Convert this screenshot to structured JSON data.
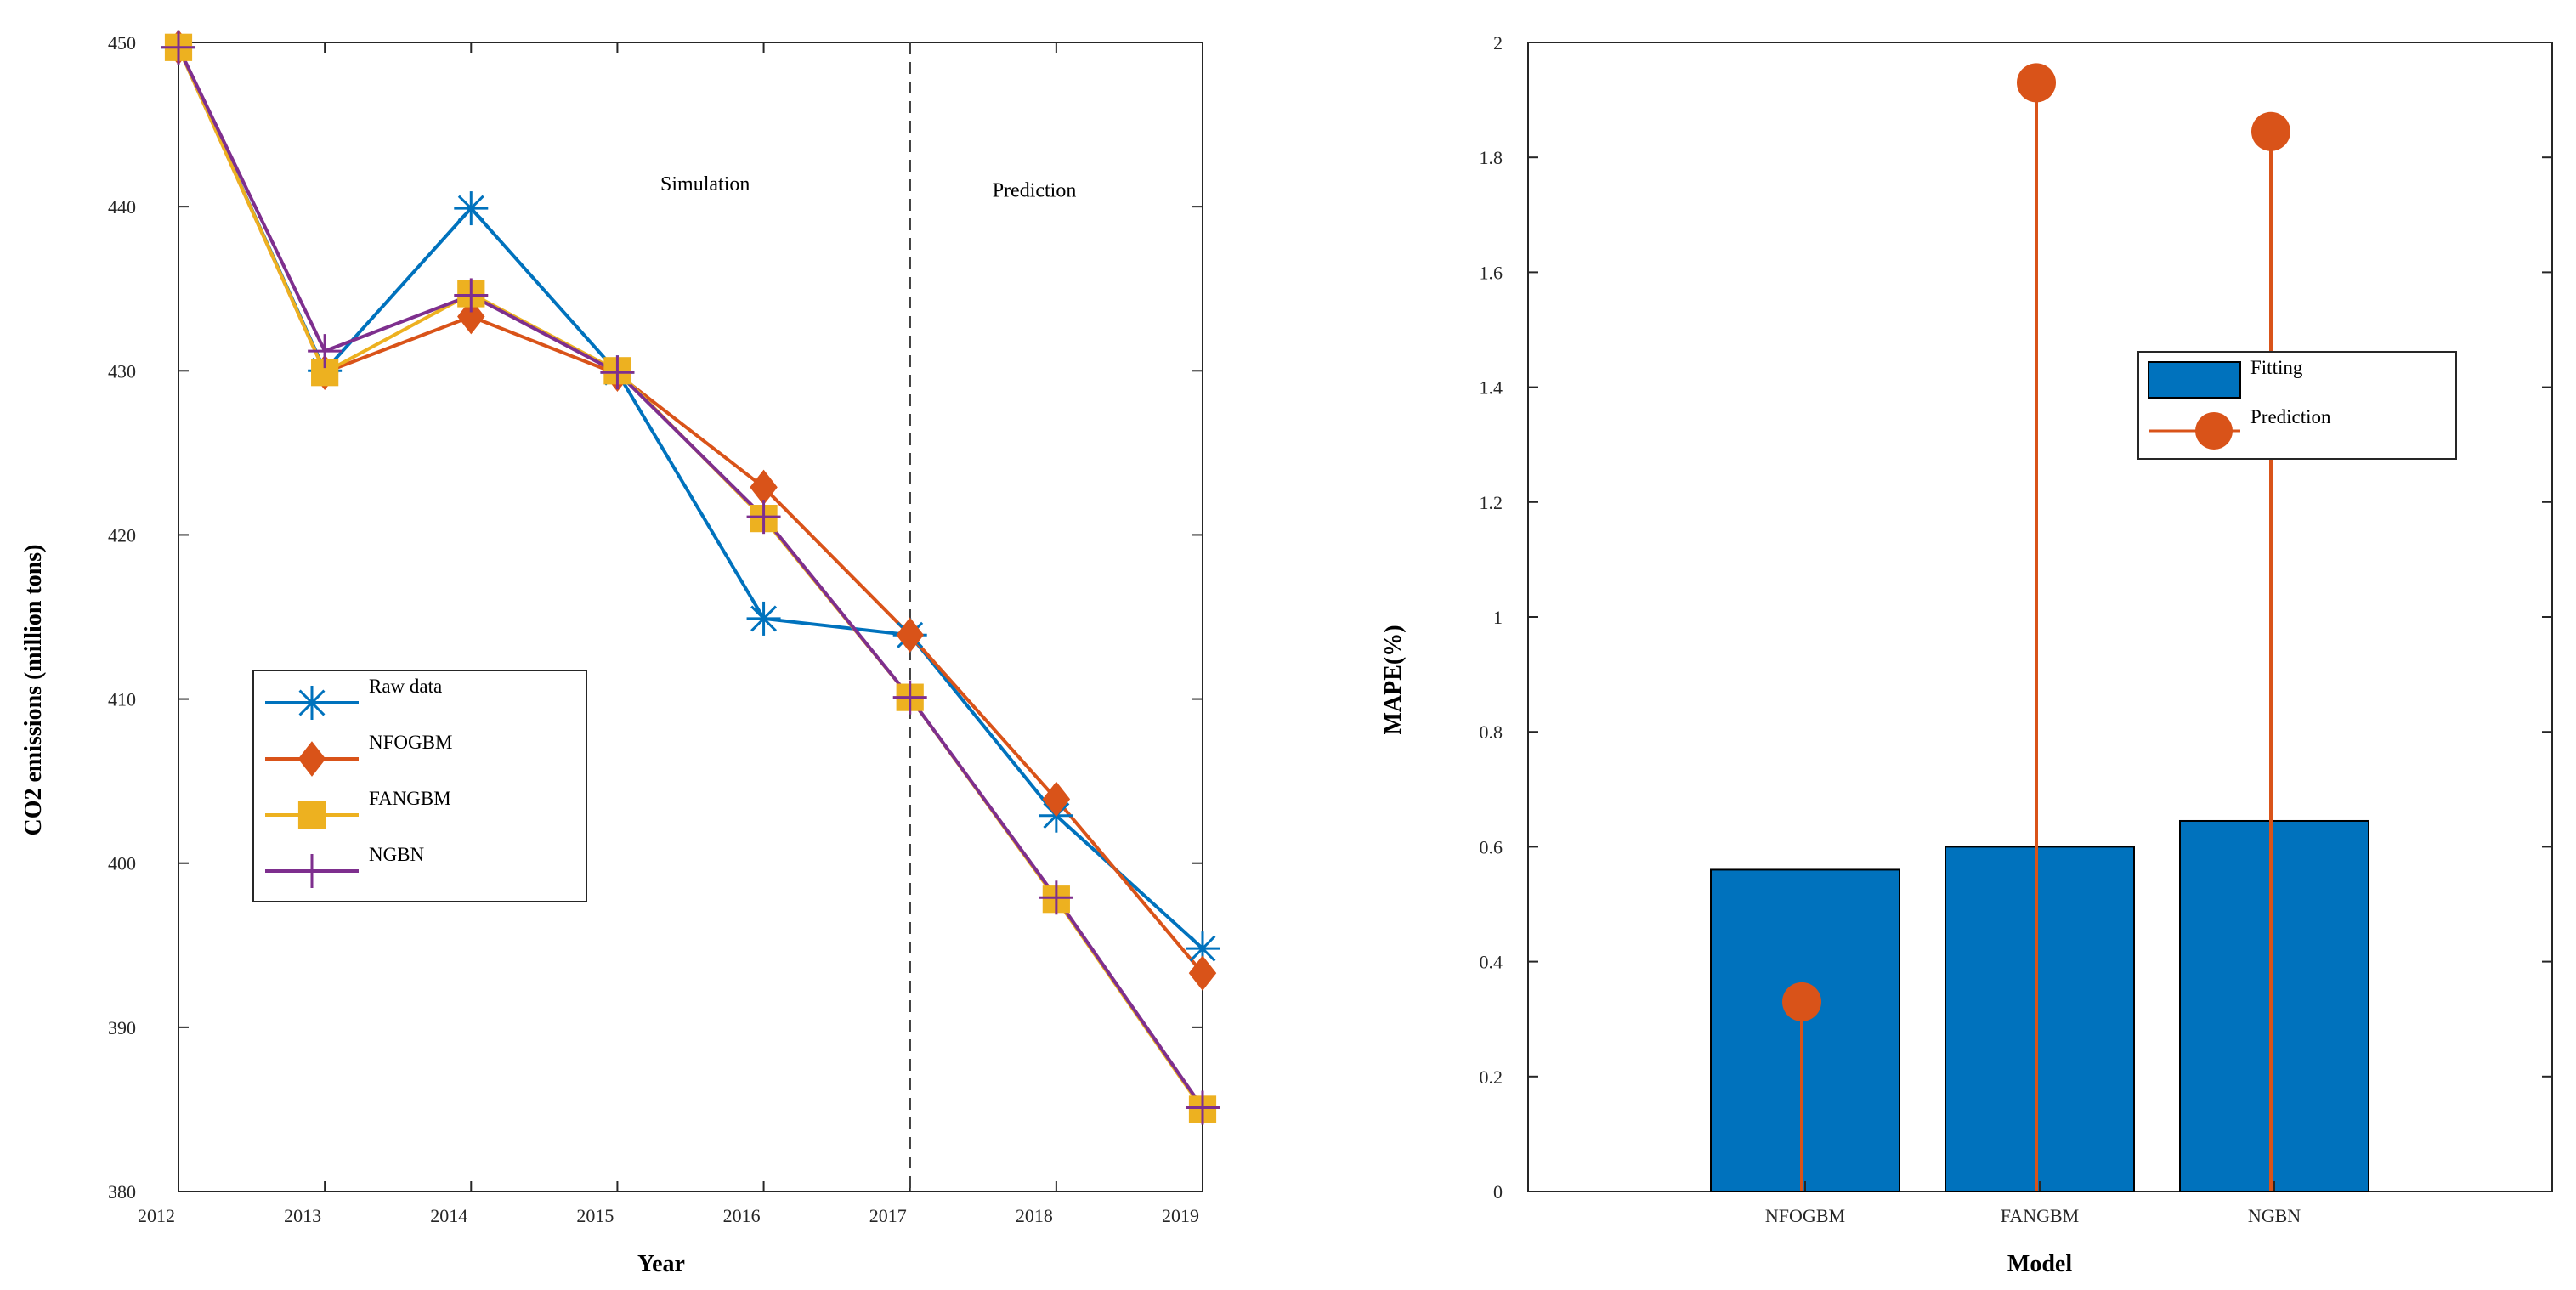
{
  "chart_data": [
    {
      "type": "line",
      "title": "",
      "xlabel": "Year",
      "ylabel": "CO2 emissions (million tons)",
      "x": [
        2012,
        2013,
        2014,
        2015,
        2016,
        2017,
        2018,
        2019
      ],
      "xlim": [
        2012,
        2019
      ],
      "ylim": [
        380,
        450
      ],
      "xticks": [
        "2012",
        "2013",
        "2014",
        "2015",
        "2016",
        "2017",
        "2018",
        "2019"
      ],
      "yticks": [
        "380",
        "390",
        "400",
        "410",
        "420",
        "430",
        "440",
        "450"
      ],
      "series": [
        {
          "name": "Raw data",
          "color": "#0072BD",
          "marker": "asterisk",
          "values": [
            449.7,
            430.0,
            439.9,
            429.9,
            414.9,
            413.9,
            402.9,
            394.8
          ]
        },
        {
          "name": "NFOGBM",
          "color": "#D95319",
          "marker": "diamond",
          "values": [
            449.7,
            429.9,
            433.3,
            429.8,
            422.9,
            413.9,
            403.9,
            393.3
          ]
        },
        {
          "name": "FANGBM",
          "color": "#EDB120",
          "marker": "square",
          "values": [
            449.7,
            429.9,
            434.7,
            430.0,
            421.0,
            410.1,
            397.8,
            385.0
          ]
        },
        {
          "name": "NGBN",
          "color": "#7E2F8E",
          "marker": "plus",
          "values": [
            449.7,
            431.2,
            434.6,
            429.9,
            421.1,
            410.1,
            397.9,
            385.1
          ]
        }
      ],
      "divider_x": 2017,
      "annotations": [
        {
          "text": "Simulation",
          "x": 2015.6,
          "y": 441
        },
        {
          "text": "Prediction",
          "x": 2017.85,
          "y": 440.6
        }
      ],
      "legend": "left",
      "grid": false
    },
    {
      "type": "bar",
      "title": "",
      "xlabel": "Model",
      "ylabel": "MAPE(%)",
      "categories": [
        "NFOGBM",
        "FANGBM",
        "NGBN"
      ],
      "ylim": [
        0,
        2
      ],
      "yticks": [
        "0",
        "0.2",
        "0.4",
        "0.6",
        "0.8",
        "1",
        "1.2",
        "1.4",
        "1.6",
        "1.8",
        "2"
      ],
      "series": [
        {
          "name": "Fitting",
          "kind": "bar",
          "color": "#0072BD",
          "values": [
            0.56,
            0.6,
            0.645
          ]
        },
        {
          "name": "Prediction",
          "kind": "stem",
          "color": "#D95319",
          "values": [
            0.33,
            1.93,
            1.845
          ]
        }
      ],
      "legend": "right",
      "grid": false
    }
  ]
}
